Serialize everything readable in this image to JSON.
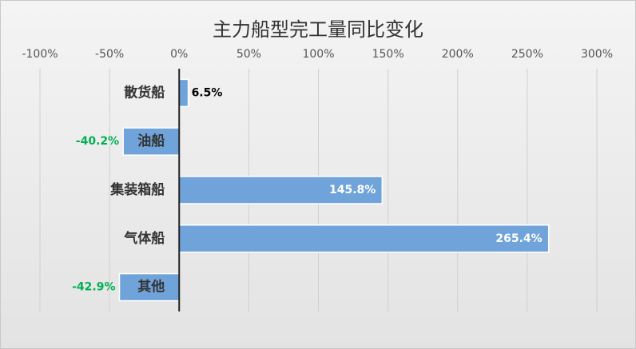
{
  "chart_data": {
    "type": "bar",
    "orientation": "horizontal",
    "title": "主力船型完工量同比变化",
    "categories": [
      "散货船",
      "油船",
      "集装箱船",
      "气体船",
      "其他"
    ],
    "values": [
      6.5,
      -40.2,
      145.8,
      265.4,
      -42.9
    ],
    "value_labels": [
      "6.5%",
      "-40.2%",
      "145.8%",
      "265.4%",
      "-42.9%"
    ],
    "color": "#6fa3da",
    "xlim": [
      -100,
      300
    ],
    "xticks": [
      {
        "value": -100,
        "label": "-100%"
      },
      {
        "value": -50,
        "label": "-50%"
      },
      {
        "value": 0,
        "label": "0%"
      },
      {
        "value": 50,
        "label": "50%"
      },
      {
        "value": 100,
        "label": "100%"
      },
      {
        "value": 150,
        "label": "150%"
      },
      {
        "value": 200,
        "label": "200%"
      },
      {
        "value": 250,
        "label": "250%"
      },
      {
        "value": 300,
        "label": "300%"
      }
    ],
    "grid": true
  }
}
